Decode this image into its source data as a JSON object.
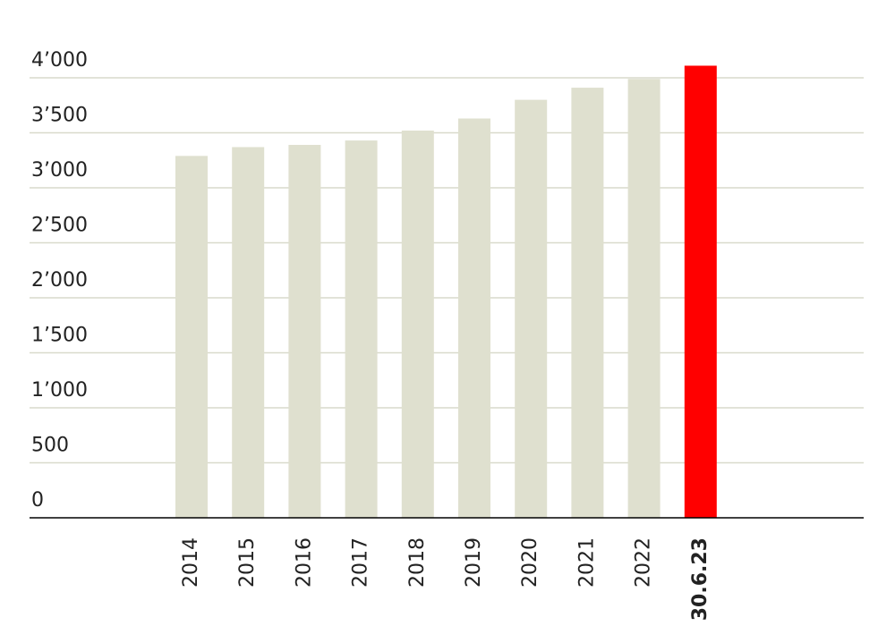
{
  "chart_data": {
    "type": "bar",
    "categories": [
      "2014",
      "2015",
      "2016",
      "2017",
      "2018",
      "2019",
      "2020",
      "2021",
      "2022",
      "30.6.23"
    ],
    "values": [
      3290,
      3370,
      3390,
      3430,
      3520,
      3630,
      3800,
      3910,
      3990,
      4110
    ],
    "colors": [
      "#dfe0cf",
      "#dfe0cf",
      "#dfe0cf",
      "#dfe0cf",
      "#dfe0cf",
      "#dfe0cf",
      "#dfe0cf",
      "#dfe0cf",
      "#dfe0cf",
      "#ff0000"
    ],
    "ylim": [
      0,
      4000
    ],
    "yticks": [
      0,
      500,
      {
        "value": 1000,
        "label": "1’000"
      },
      {
        "value": 1500,
        "label": "1’500"
      },
      {
        "value": 2000,
        "label": "2’000"
      },
      {
        "value": 2500,
        "label": "2’500"
      },
      {
        "value": 3000,
        "label": "3’000"
      },
      {
        "value": 3500,
        "label": "3’500"
      },
      {
        "value": 4000,
        "label": "4’000"
      }
    ],
    "grid": true
  }
}
